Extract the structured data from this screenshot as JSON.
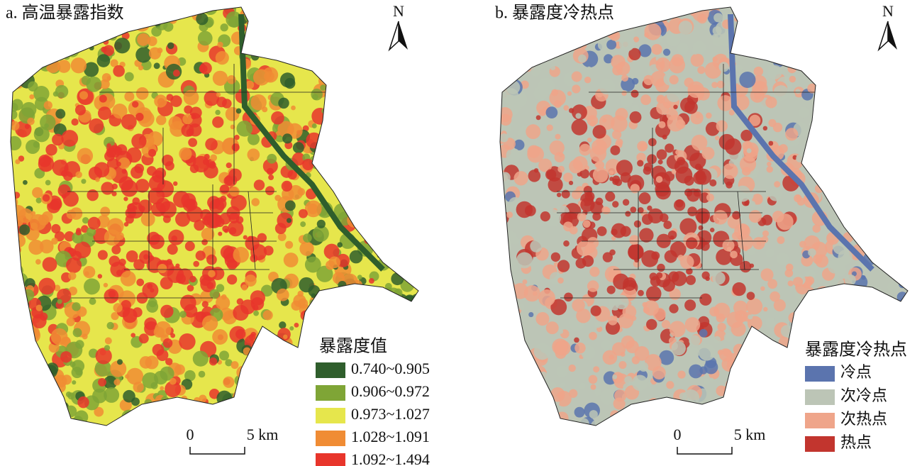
{
  "panels": [
    {
      "title": "a. 高温暴露指数",
      "north": "N",
      "legend": {
        "title": "暴露度值",
        "items": [
          {
            "label": "0.740~0.905",
            "color": "#2f5e2c"
          },
          {
            "label": "0.906~0.972",
            "color": "#7fa536"
          },
          {
            "label": "0.973~1.027",
            "color": "#e6e64c"
          },
          {
            "label": "1.028~1.091",
            "color": "#f08c34"
          },
          {
            "label": "1.092~1.494",
            "color": "#e8352b"
          }
        ]
      },
      "scale": [
        "0",
        "5 km"
      ]
    },
    {
      "title": "b. 暴露度冷热点",
      "north": "N",
      "legend": {
        "title": "暴露度冷热点",
        "items": [
          {
            "label": "冷点",
            "color": "#5b74ae"
          },
          {
            "label": "次冷点",
            "color": "#bcc5b6"
          },
          {
            "label": "次热点",
            "color": "#efa58a"
          },
          {
            "label": "热点",
            "color": "#c2352e"
          }
        ]
      },
      "scale": [
        "0",
        "5 km"
      ]
    }
  ]
}
